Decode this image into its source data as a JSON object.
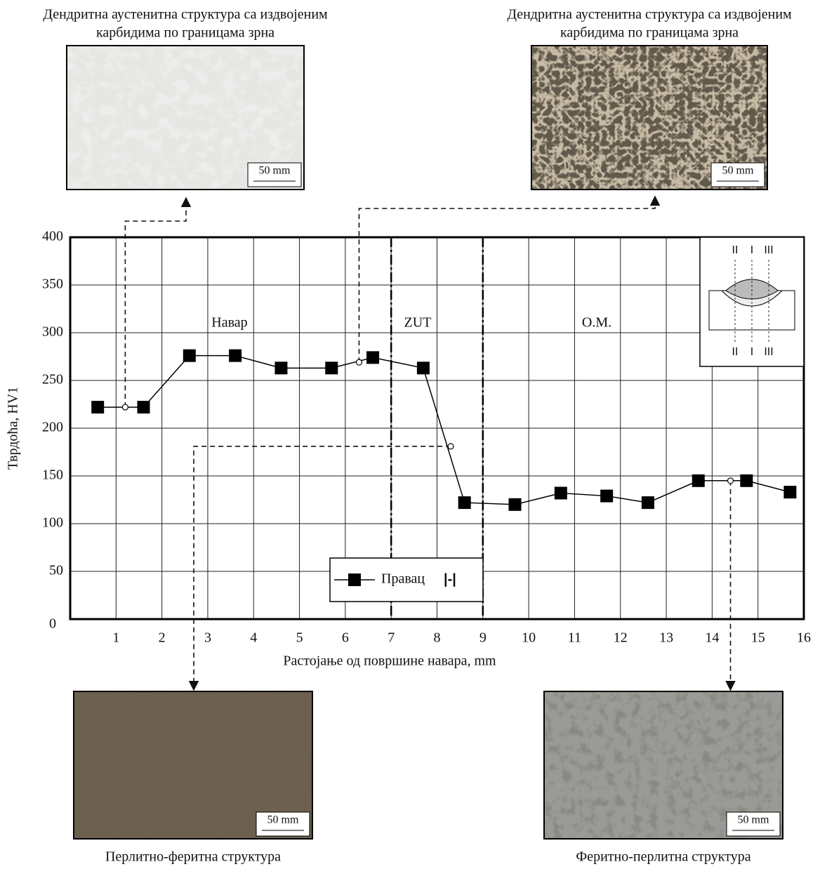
{
  "chart_data": {
    "type": "line",
    "xlabel": "Растојање од површине навара, mm",
    "ylabel": "Тврдоћа, HV1",
    "xlim": [
      0,
      16
    ],
    "ylim": [
      0,
      400
    ],
    "xticks": [
      1,
      2,
      3,
      4,
      5,
      6,
      7,
      8,
      9,
      10,
      11,
      12,
      13,
      14,
      15,
      16
    ],
    "yticks": [
      0,
      50,
      100,
      150,
      200,
      250,
      300,
      350,
      400
    ],
    "grid": true,
    "series": [
      {
        "name": "Правац",
        "color": "#000000",
        "x": [
          0.6,
          1.6,
          2.6,
          3.6,
          4.6,
          5.7,
          6.6,
          7.7,
          8.6,
          9.7,
          10.7,
          11.7,
          12.6,
          13.7,
          14.75,
          15.7
        ],
        "values": [
          222,
          222,
          276,
          276,
          263,
          263,
          274,
          263,
          122,
          120,
          132,
          129,
          122,
          145,
          145,
          133
        ]
      }
    ],
    "legend_note": "|-|",
    "sample_points": {
      "x": [
        1.2,
        6.3,
        8.3,
        14.4
      ],
      "values": [
        222,
        269,
        181,
        145
      ]
    },
    "zone_bounds": [
      7,
      9
    ],
    "zones": [
      "Навар",
      "ZUT",
      "О.М."
    ],
    "inset_labels": {
      "top": [
        "II",
        "I",
        "III"
      ],
      "bottom": [
        "II",
        "I",
        "III"
      ]
    },
    "micrographs": [
      {
        "caption": [
          "Дендритна аустенитна структура са издвојеним",
          "карбидима по границама зрна"
        ],
        "scale": "50 mm"
      },
      {
        "caption": [
          "Дендритна аустенитна структура са издвојеним",
          "карбидима по границама зрна"
        ],
        "scale": "50 mm"
      },
      {
        "caption": [
          "Перлитно-феритна структура"
        ],
        "scale": "50 mm"
      },
      {
        "caption": [
          "Феритно-перлитна структура"
        ],
        "scale": "50 mm"
      }
    ]
  }
}
